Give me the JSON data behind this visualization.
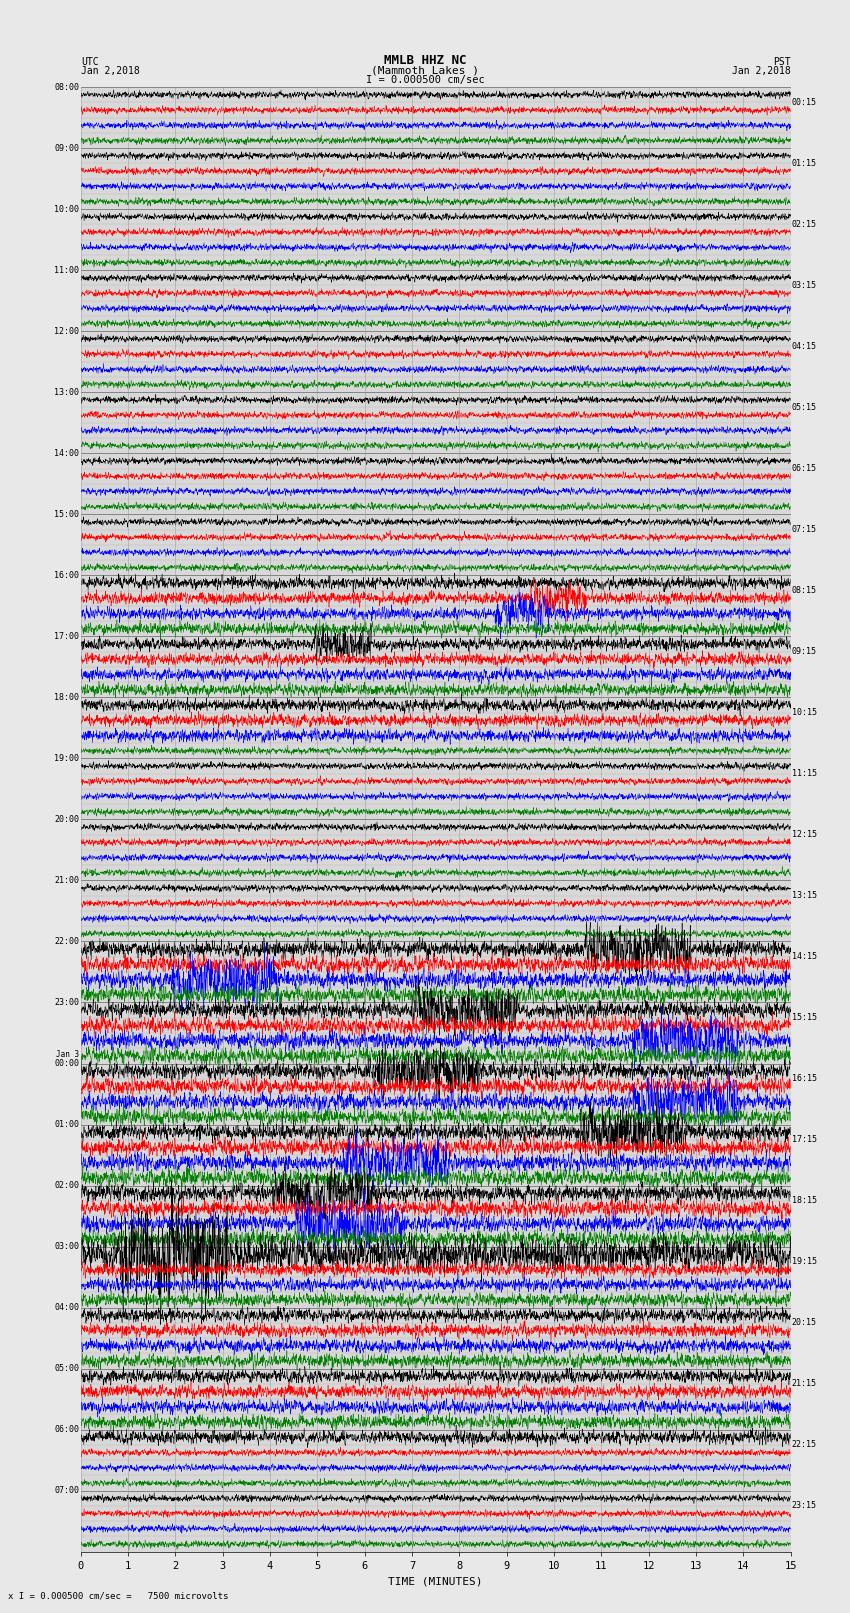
{
  "title_line1": "MMLB HHZ NC",
  "title_line2": "(Mammoth Lakes )",
  "scale_label": "I = 0.000500 cm/sec",
  "utc_label": "UTC\nJan 2,2018",
  "pst_label": "PST\nJan 2,2018",
  "xlabel": "TIME (MINUTES)",
  "bottom_note": "x I = 0.000500 cm/sec =   7500 microvolts",
  "bg_color": "#e8e8e8",
  "plot_bg_color": "#d8d8d8",
  "trace_colors": [
    "black",
    "red",
    "blue",
    "green"
  ],
  "x_min": 0,
  "x_max": 15,
  "x_ticks": [
    0,
    1,
    2,
    3,
    4,
    5,
    6,
    7,
    8,
    9,
    10,
    11,
    12,
    13,
    14,
    15
  ],
  "total_rows": 96,
  "figwidth": 8.5,
  "figheight": 16.13,
  "left_labels_utc": [
    "08:00",
    "09:00",
    "10:00",
    "11:00",
    "12:00",
    "13:00",
    "14:00",
    "15:00",
    "16:00",
    "17:00",
    "18:00",
    "19:00",
    "20:00",
    "21:00",
    "22:00",
    "23:00",
    "Jan 3\n00:00",
    "01:00",
    "02:00",
    "03:00",
    "04:00",
    "05:00",
    "06:00",
    "07:00"
  ],
  "right_labels_pst": [
    "00:15",
    "01:15",
    "02:15",
    "03:15",
    "04:15",
    "05:15",
    "06:15",
    "07:15",
    "08:15",
    "09:15",
    "10:15",
    "11:15",
    "12:15",
    "13:15",
    "14:15",
    "15:15",
    "16:15",
    "17:15",
    "18:15",
    "19:15",
    "20:15",
    "21:15",
    "22:15",
    "23:15"
  ],
  "noise_seeds": [
    42,
    123,
    7,
    99,
    55,
    201,
    333,
    17,
    88,
    44,
    66,
    777,
    13,
    29,
    51,
    61,
    72,
    83,
    94,
    105,
    116,
    127,
    138,
    149,
    160,
    171,
    182,
    193,
    204,
    215,
    226,
    237,
    248,
    259,
    270,
    281,
    292,
    303,
    314,
    325,
    336,
    347,
    358,
    369,
    380,
    391,
    402,
    413,
    424,
    435,
    446,
    457,
    468,
    479,
    490,
    501,
    512,
    523,
    534,
    545,
    556,
    567,
    578,
    589,
    600,
    611,
    622,
    633,
    644,
    655,
    666,
    677,
    688,
    699,
    710,
    721,
    732,
    743,
    754,
    765,
    776,
    787,
    798,
    809,
    820,
    831,
    842,
    853,
    864,
    875,
    886,
    897,
    908,
    919,
    930,
    941,
    952,
    963
  ]
}
